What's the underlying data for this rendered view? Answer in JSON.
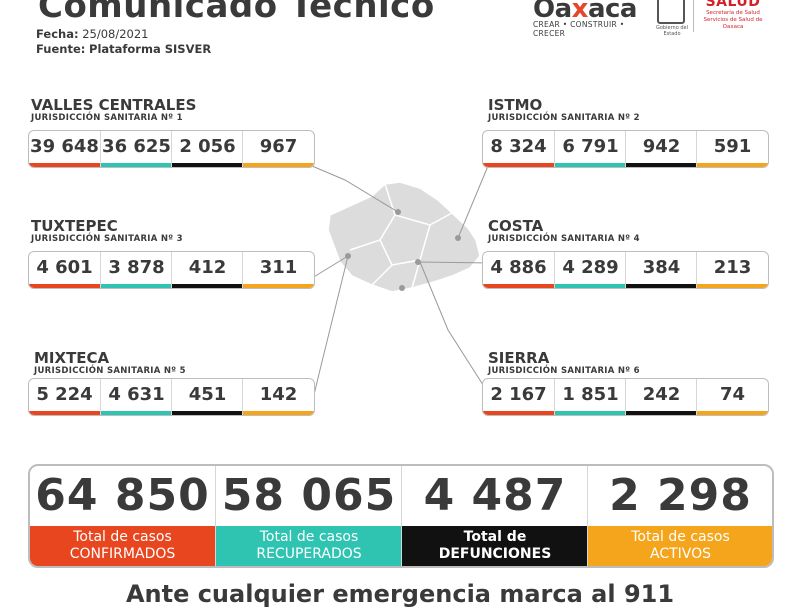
{
  "header": {
    "title": "Comunicado Técnico",
    "date_label": "Fecha:",
    "date_value": "25/08/2021",
    "source_label": "Fuente:",
    "source_value": "Plataforma SISVER"
  },
  "logos": {
    "oaxaca_word_a": "Oa",
    "oaxaca_word_x": "x",
    "oaxaca_word_b": "aca",
    "oaxaca_slogan": "CREAR • CONSTRUIR • CRECER",
    "gobierno_caption": "Gobierno del Estado",
    "salud_word": "SALUD",
    "salud_caption_1": "Secretaría de Salud",
    "salud_caption_2": "Servicios de Salud de Oaxaca"
  },
  "colors": {
    "confirmed": "#e8461f",
    "recovered": "#2fc4b2",
    "deaths": "#111111",
    "active": "#f4a51c"
  },
  "regions": [
    {
      "name": "VALLES CENTRALES",
      "jurisdiction": "JURISDICCIÓN SANITARIA Nº 1",
      "values": [
        "39 648",
        "36 625",
        "2 056",
        "967"
      ]
    },
    {
      "name": "ISTMO",
      "jurisdiction": "JURISDICCIÓN SANITARIA Nº 2",
      "values": [
        "8 324",
        "6 791",
        "942",
        "591"
      ]
    },
    {
      "name": "TUXTEPEC",
      "jurisdiction": "JURISDICCIÓN SANITARIA Nº 3",
      "values": [
        "4 601",
        "3 878",
        "412",
        "311"
      ]
    },
    {
      "name": "COSTA",
      "jurisdiction": "JURISDICCIÓN SANITARIA Nº 4",
      "values": [
        "4 886",
        "4 289",
        "384",
        "213"
      ]
    },
    {
      "name": "MIXTECA",
      "jurisdiction": "JURISDICCIÓN SANITARIA Nº 5",
      "values": [
        "5 224",
        "4 631",
        "451",
        "142"
      ]
    },
    {
      "name": "SIERRA",
      "jurisdiction": "JURISDICCIÓN SANITARIA Nº 6",
      "values": [
        "2 167",
        "1 851",
        "242",
        "74"
      ]
    }
  ],
  "totals": [
    {
      "value": "64 850",
      "label_1": "Total de casos",
      "label_2": "CONFIRMADOS"
    },
    {
      "value": "58 065",
      "label_1": "Total de casos",
      "label_2": "RECUPERADOS"
    },
    {
      "value": "4 487",
      "label_1": "Total de",
      "label_2": "DEFUNCIONES"
    },
    {
      "value": "2 298",
      "label_1": "Total de casos",
      "label_2": "ACTIVOS"
    }
  ],
  "footer": "Ante cualquier emergencia marca al 911"
}
